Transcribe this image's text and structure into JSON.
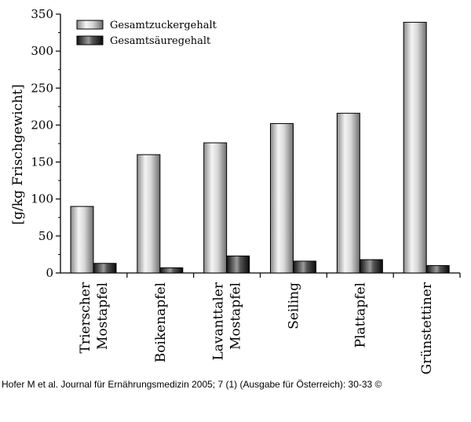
{
  "chart_data": {
    "type": "bar",
    "categories": [
      [
        "Trierscher",
        "Mostapfel"
      ],
      [
        "Boikenapfel"
      ],
      [
        "Lavanttaler",
        "Mostapfel"
      ],
      [
        "Seiling"
      ],
      [
        "Plattapfel"
      ],
      [
        "Grünstettiner"
      ]
    ],
    "series": [
      {
        "name": "Gesamtzuckergehalt",
        "values": [
          90,
          160,
          176,
          202,
          216,
          339
        ],
        "color": "#c8c8c8"
      },
      {
        "name": "Gesamtsäuregehalt",
        "values": [
          13,
          7,
          23,
          16,
          18,
          10
        ],
        "color": "#222222"
      }
    ],
    "title": "",
    "xlabel": "",
    "ylabel": "[g/kg Frischgewicht]",
    "ylim": [
      0,
      350
    ],
    "yticks": [
      "0",
      "50",
      "100",
      "150",
      "200",
      "250",
      "300",
      "350"
    ],
    "legend": "top-left",
    "grid": false
  },
  "footer": {
    "credit": "Hofer M et al. Journal für Ernährungsmedizin 2005; 7 (1) (Ausgabe für Österreich): 30-33 ©"
  }
}
